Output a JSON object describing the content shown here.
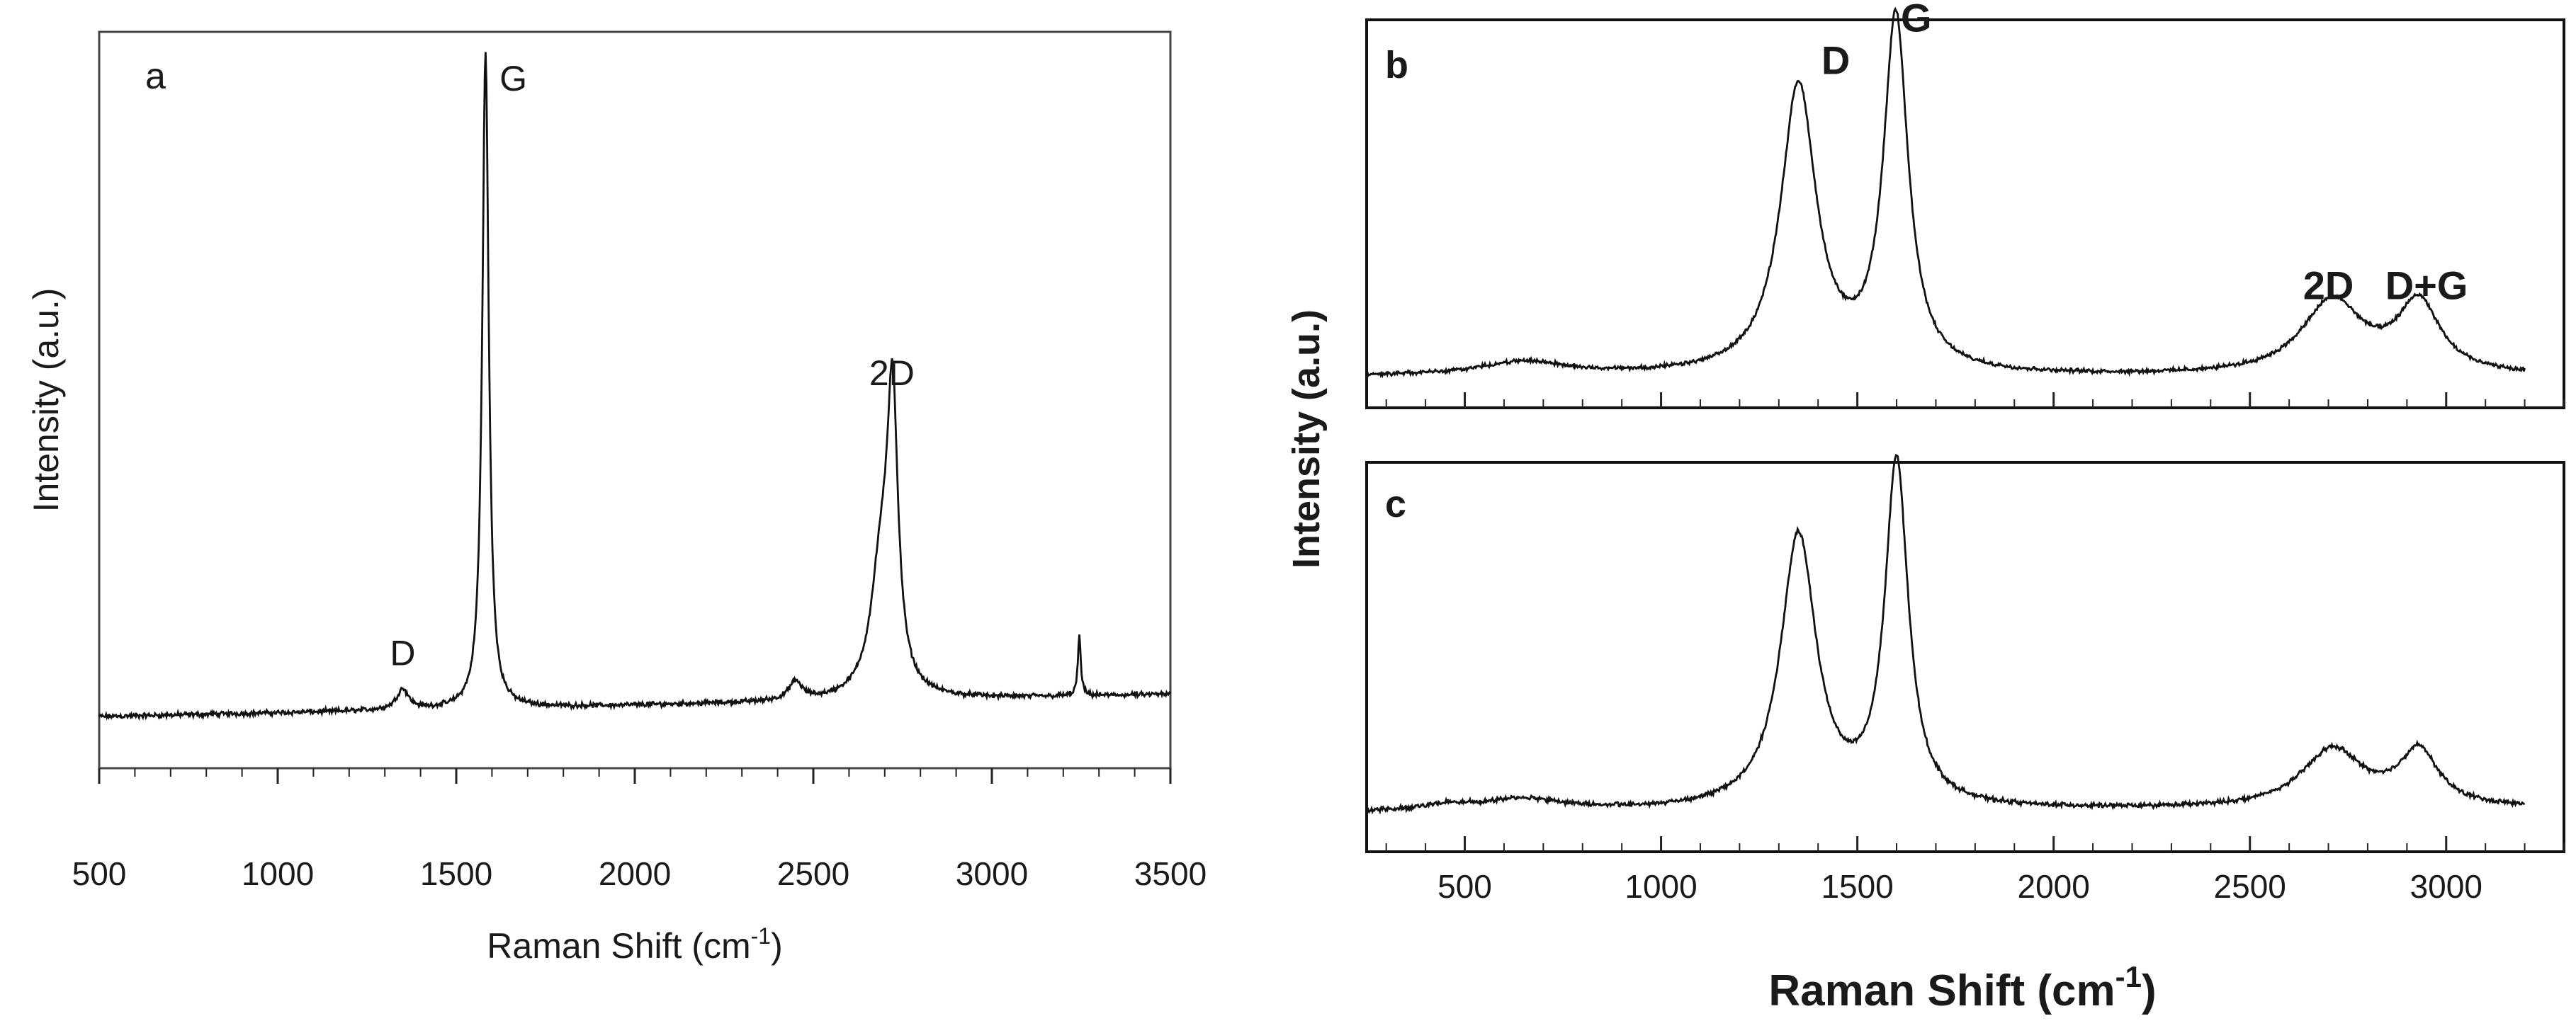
{
  "chart_data": [
    {
      "type": "line",
      "panel_label": "a",
      "title": "",
      "xlabel_main": "Raman Shift (cm",
      "xlabel_sup": "-1",
      "xlabel_tail": ")",
      "ylabel": "Intensity (a.u.)",
      "xlim": [
        500,
        3500
      ],
      "ylim": [
        0,
        100
      ],
      "xticks": [
        500,
        1000,
        1500,
        2000,
        2500,
        3000,
        3500
      ],
      "yticks_shown": false,
      "line_color": "#111111",
      "baseline": {
        "start_x": 500,
        "start_y": 7.0,
        "end_x": 3500,
        "end_y": 10.0,
        "noise": 0.4
      },
      "peaks": [
        {
          "center": 1350,
          "height": 2.8,
          "width": 20
        },
        {
          "center": 1582,
          "height": 89.0,
          "width": 11
        },
        {
          "center": 2450,
          "height": 2.5,
          "width": 22
        },
        {
          "center": 2690,
          "height": 17.0,
          "width": 35
        },
        {
          "center": 2722,
          "height": 37.0,
          "width": 18
        },
        {
          "center": 3245,
          "height": 8.0,
          "width": 5
        }
      ],
      "annotations": [
        {
          "text": "D",
          "x": 1350,
          "y": 14
        },
        {
          "text": "G",
          "x": 1660,
          "y": 92
        },
        {
          "text": "2D",
          "x": 2720,
          "y": 52
        }
      ]
    },
    {
      "type": "line",
      "panel_label": "b",
      "xlim": [
        250,
        3300
      ],
      "ylim": [
        0,
        100
      ],
      "xticks": [
        500,
        1000,
        1500,
        2000,
        2500,
        3000
      ],
      "show_tick_labels": false,
      "line_color": "#111111",
      "baseline": {
        "start_x": 250,
        "start_y": 8.0,
        "end_x": 3200,
        "end_y": 8.0,
        "noise": 0.6
      },
      "peaks": [
        {
          "center": 650,
          "height": 3.5,
          "width": 140
        },
        {
          "center": 1350,
          "height": 74.0,
          "width": 55
        },
        {
          "center": 1598,
          "height": 91.0,
          "width": 38
        },
        {
          "center": 2710,
          "height": 19.0,
          "width": 95
        },
        {
          "center": 2930,
          "height": 18.0,
          "width": 65
        }
      ],
      "annotations": [
        {
          "text": "D",
          "x": 1445,
          "y": 86
        },
        {
          "text": "G",
          "x": 1650,
          "y": 97
        },
        {
          "text": "2D",
          "x": 2700,
          "y": 28
        },
        {
          "text": "D+G",
          "x": 2950,
          "y": 28
        }
      ]
    },
    {
      "type": "line",
      "panel_label": "c",
      "xlim": [
        250,
        3300
      ],
      "ylim": [
        0,
        100
      ],
      "xticks": [
        500,
        1000,
        1500,
        2000,
        2500,
        3000
      ],
      "xtick_labels": [
        "500",
        "1000",
        "1500",
        "2000",
        "2500",
        "3000"
      ],
      "line_color": "#111111",
      "baseline": {
        "start_x": 250,
        "start_y": 10.0,
        "end_x": 3200,
        "end_y": 11.0,
        "noise": 0.7
      },
      "peaks": [
        {
          "center": 460,
          "height": 1.5,
          "width": 80
        },
        {
          "center": 650,
          "height": 3.0,
          "width": 120
        },
        {
          "center": 1350,
          "height": 70.0,
          "width": 55
        },
        {
          "center": 1600,
          "height": 88.0,
          "width": 36
        },
        {
          "center": 2710,
          "height": 15.0,
          "width": 95
        },
        {
          "center": 2930,
          "height": 14.0,
          "width": 60
        }
      ],
      "annotations": []
    }
  ],
  "shared": {
    "ylabel_bc": "Intensity (a.u.)",
    "xlabel_bc_main": "Raman Shift (cm",
    "xlabel_bc_sup": "-1",
    "xlabel_bc_tail": ")"
  }
}
